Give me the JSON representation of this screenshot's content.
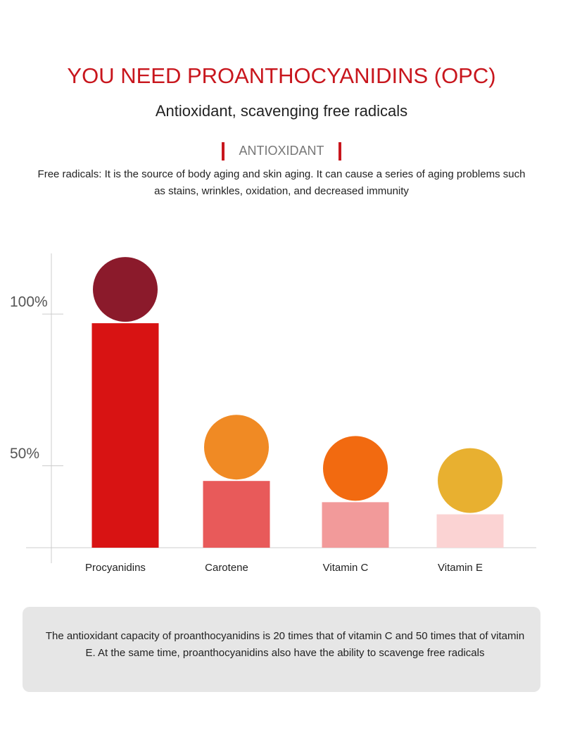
{
  "header": {
    "title": "YOU NEED PROANTHOCYANIDINS (OPC)",
    "subtitle": "Antioxidant, scavenging free radicals",
    "tag": "ANTIOXIDANT",
    "description": "Free radicals: It is the source of body aging and skin aging. It can cause a series of aging problems such as stains, wrinkles, oxidation, and decreased immunity"
  },
  "chart_data": {
    "type": "bar",
    "categories": [
      "Procyanidins",
      "Carotene",
      "Vitamin C",
      "Vitamin E"
    ],
    "values": [
      97,
      45,
      38,
      34
    ],
    "colors": [
      "#d81313",
      "#e85a5a",
      "#f29a9a",
      "#fbd3d3"
    ],
    "ylim": [
      23,
      120
    ],
    "yticks": [
      {
        "value": 50,
        "label": "50%"
      },
      {
        "value": 100,
        "label": "100%"
      }
    ]
  },
  "note": "The antioxidant capacity of proanthocyanidins is 20 times that of vitamin C and 50 times that of vitamin E. At the same time, proanthocyanidins also have the ability to scavenge free radicals"
}
